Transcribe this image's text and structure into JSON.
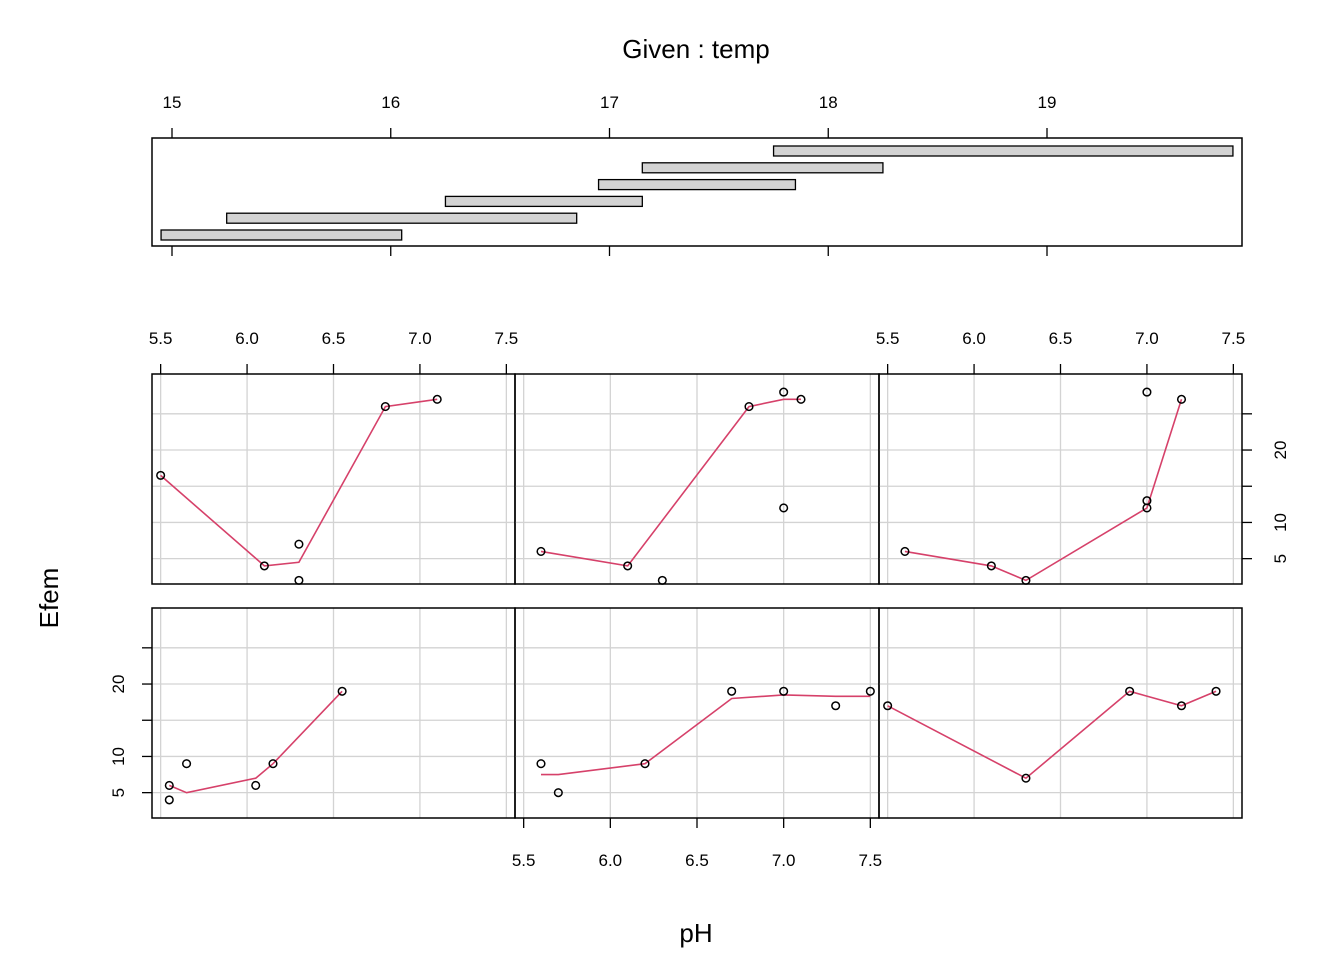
{
  "chart_data": {
    "type": "scatter",
    "title": "",
    "given": {
      "label": "Given : temp",
      "ticks": [
        15,
        16,
        17,
        18,
        19
      ],
      "range": [
        14.95,
        19.9
      ],
      "intervals": [
        [
          14.95,
          16.05
        ],
        [
          15.25,
          16.85
        ],
        [
          16.25,
          17.15
        ],
        [
          16.95,
          17.85
        ],
        [
          17.15,
          18.25
        ],
        [
          17.75,
          19.85
        ]
      ]
    },
    "xlabel": "pH",
    "ylabel": "Efem",
    "xlim": [
      5.45,
      7.55
    ],
    "ylim": [
      1.5,
      30.5
    ],
    "xticks": [
      5.5,
      6.0,
      6.5,
      7.0,
      7.5
    ],
    "xtick_labels": [
      "5.5",
      "6.0",
      "6.5",
      "7.0",
      "7.5"
    ],
    "yticks": [
      5,
      10,
      20
    ],
    "ytick_labels": [
      "5",
      "10",
      "20"
    ],
    "panels": [
      {
        "points": [
          [
            5.55,
            4
          ],
          [
            5.65,
            9
          ],
          [
            5.55,
            6
          ],
          [
            6.05,
            6
          ],
          [
            6.15,
            9
          ],
          [
            6.55,
            19
          ]
        ],
        "smooth": [
          [
            5.55,
            6
          ],
          [
            5.65,
            5
          ],
          [
            6.05,
            7
          ],
          [
            6.15,
            9
          ],
          [
            6.55,
            19
          ]
        ]
      },
      {
        "points": [
          [
            5.6,
            9
          ],
          [
            5.7,
            5
          ],
          [
            6.2,
            9
          ],
          [
            6.7,
            19
          ],
          [
            7.0,
            19
          ],
          [
            7.3,
            17
          ],
          [
            7.5,
            19
          ]
        ],
        "smooth": [
          [
            5.6,
            7.5
          ],
          [
            5.7,
            7.5
          ],
          [
            6.2,
            9
          ],
          [
            6.7,
            18
          ],
          [
            7.0,
            18.5
          ],
          [
            7.3,
            18.3
          ],
          [
            7.5,
            18.3
          ]
        ]
      },
      {
        "points": [
          [
            5.5,
            17
          ],
          [
            6.3,
            7
          ],
          [
            6.9,
            19
          ],
          [
            7.2,
            17
          ],
          [
            7.4,
            19
          ]
        ],
        "smooth": [
          [
            5.5,
            17
          ],
          [
            6.3,
            7
          ],
          [
            6.9,
            19
          ],
          [
            7.2,
            17
          ],
          [
            7.4,
            19
          ]
        ]
      },
      {
        "points": [
          [
            5.5,
            16.5
          ],
          [
            6.1,
            4
          ],
          [
            6.3,
            7
          ],
          [
            6.3,
            2
          ],
          [
            6.8,
            26
          ],
          [
            7.1,
            27
          ]
        ],
        "smooth": [
          [
            5.5,
            16.5
          ],
          [
            6.1,
            4
          ],
          [
            6.3,
            4.5
          ],
          [
            6.8,
            26
          ],
          [
            7.1,
            27
          ]
        ]
      },
      {
        "points": [
          [
            5.6,
            6
          ],
          [
            6.1,
            4
          ],
          [
            6.3,
            2
          ],
          [
            6.8,
            26
          ],
          [
            7.0,
            28
          ],
          [
            7.0,
            12
          ],
          [
            7.1,
            27
          ]
        ],
        "smooth": [
          [
            5.6,
            6
          ],
          [
            6.1,
            4
          ],
          [
            6.8,
            26
          ],
          [
            7.0,
            27
          ],
          [
            7.1,
            27
          ]
        ]
      },
      {
        "points": [
          [
            5.6,
            6
          ],
          [
            6.1,
            4
          ],
          [
            6.3,
            2
          ],
          [
            7.0,
            13
          ],
          [
            7.0,
            12
          ],
          [
            7.0,
            28
          ],
          [
            7.2,
            27
          ]
        ],
        "smooth": [
          [
            5.6,
            6
          ],
          [
            6.1,
            4
          ],
          [
            6.3,
            2
          ],
          [
            7.0,
            12
          ],
          [
            7.2,
            27
          ]
        ]
      }
    ]
  }
}
